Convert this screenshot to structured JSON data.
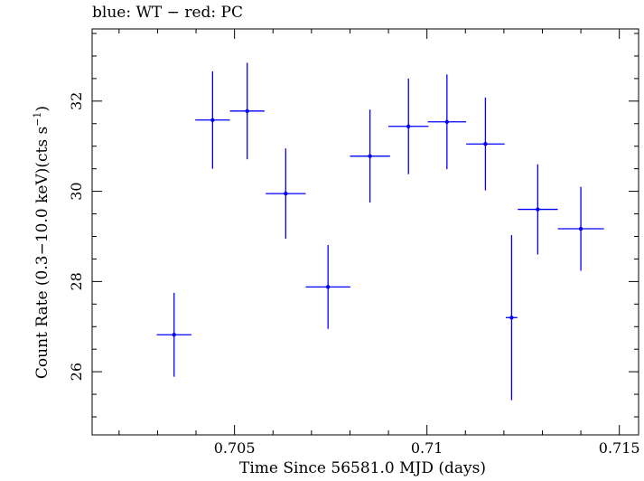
{
  "chart_data": {
    "type": "scatter",
    "title": "blue: WT − red: PC",
    "xlabel": "Time Since 56581.0 MJD (days)",
    "ylabel_main": "Count Rate (0.3−10.0 keV)(cts s",
    "ylabel_sup": "−1",
    "ylabel_end": ")",
    "xlim": [
      0.7013,
      0.7155
    ],
    "ylim": [
      24.6,
      33.6
    ],
    "xticks": [
      0.705,
      0.71,
      0.715
    ],
    "xtick_labels": [
      "0.705",
      "0.71",
      "0.715"
    ],
    "yticks": [
      26,
      28,
      30,
      32
    ],
    "ytick_labels": [
      "26",
      "28",
      "30",
      "32"
    ],
    "series_color": "#0000ff",
    "series": [
      {
        "points": [
          {
            "x": 0.70343,
            "xerr": 0.00045,
            "y": 26.82,
            "yerr": 0.93
          },
          {
            "x": 0.70443,
            "xerr": 0.00045,
            "y": 31.58,
            "yerr": 1.08
          },
          {
            "x": 0.70533,
            "xerr": 0.00045,
            "y": 31.78,
            "yerr": 1.07
          },
          {
            "x": 0.70633,
            "xerr": 0.00052,
            "y": 29.95,
            "yerr": 1.0
          },
          {
            "x": 0.70743,
            "xerr": 0.00058,
            "y": 27.88,
            "yerr": 0.93
          },
          {
            "x": 0.70852,
            "xerr": 0.00052,
            "y": 30.78,
            "yerr": 1.03
          },
          {
            "x": 0.70952,
            "xerr": 0.00052,
            "y": 31.44,
            "yerr": 1.06
          },
          {
            "x": 0.71052,
            "xerr": 0.0005,
            "y": 31.54,
            "yerr": 1.05
          },
          {
            "x": 0.71152,
            "xerr": 0.0005,
            "y": 31.05,
            "yerr": 1.03
          },
          {
            "x": 0.7122,
            "xerr": 0.00015,
            "y": 27.2,
            "yerr": 1.83
          },
          {
            "x": 0.71288,
            "xerr": 0.00052,
            "y": 29.6,
            "yerr": 1.0
          },
          {
            "x": 0.714,
            "xerr": 0.0006,
            "y": 29.17,
            "yerr": 0.93
          }
        ]
      }
    ]
  }
}
